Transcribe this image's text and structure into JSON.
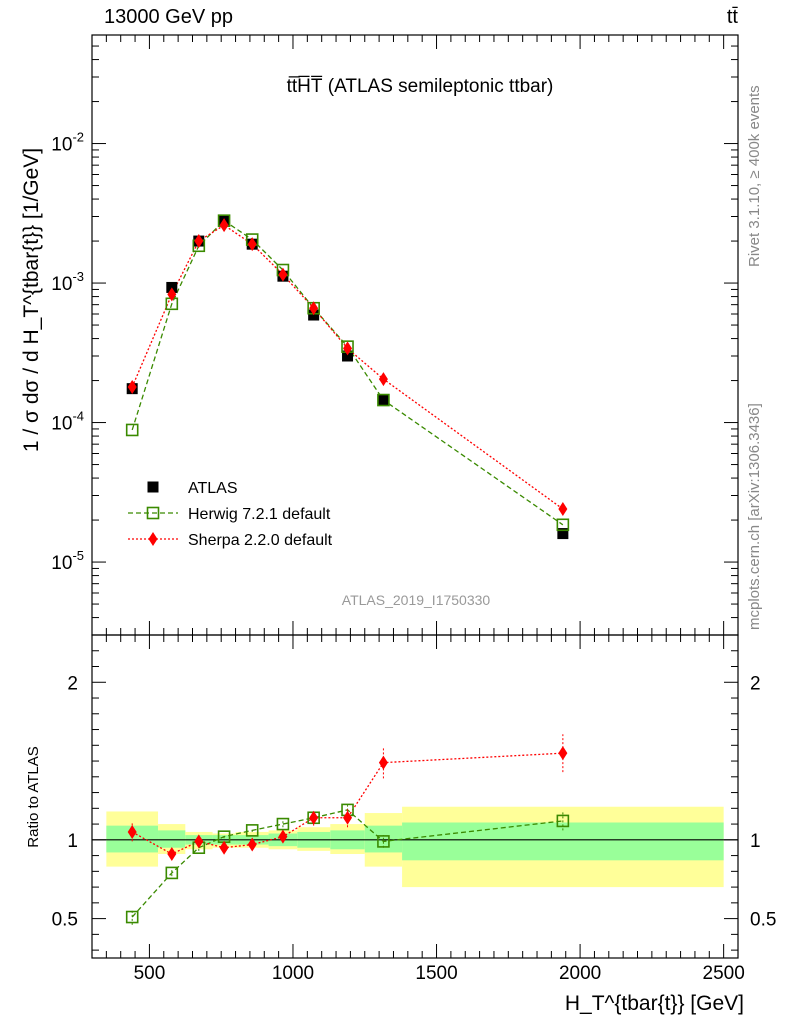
{
  "header": {
    "beam_label": "13000 GeV pp",
    "process_label": "tt̄",
    "side_label_rivet": "Rivet 3.1.10, ≥ 400k events",
    "side_label_mcplots": "mcplots.cern.ch [arXiv:1306.3436]"
  },
  "colors": {
    "atlas": "#000000",
    "herwig": "#3a8a00",
    "sherpa": "#ff0000",
    "band_inner": "#99ff99",
    "band_outer": "#ffff99"
  },
  "chart_data": [
    {
      "type": "scatter",
      "title": "tt̅H̅T̅ (ATLAS semileptonic ttbar)",
      "analysis_label": "ATLAS_2019_I1750330",
      "ylabel": "1 / σ dσ / d H_T^{tbar{t}} [1/GeV]",
      "yscale": "log",
      "ylim": [
        3e-06,
        0.06
      ],
      "xlim": [
        300,
        2550
      ],
      "y_tick_labels": [
        "10^-5",
        "10^-4",
        "10^-3",
        "10^-2"
      ],
      "legend_position": "bottom-left",
      "bins": [
        {
          "lo": 350,
          "hi": 530
        },
        {
          "lo": 530,
          "hi": 625
        },
        {
          "lo": 625,
          "hi": 720
        },
        {
          "lo": 720,
          "hi": 800
        },
        {
          "lo": 800,
          "hi": 915
        },
        {
          "lo": 915,
          "hi": 1015
        },
        {
          "lo": 1015,
          "hi": 1130
        },
        {
          "lo": 1130,
          "hi": 1250
        },
        {
          "lo": 1250,
          "hi": 1380
        },
        {
          "lo": 1380,
          "hi": 2500
        }
      ],
      "series": [
        {
          "name": "ATLAS",
          "x": [
            440,
            578,
            672,
            760,
            858,
            965,
            1072,
            1190,
            1315,
            1940
          ],
          "y": [
            0.000175,
            0.00093,
            0.002,
            0.0028,
            0.0019,
            0.00112,
            0.00059,
            0.0003,
            0.000145,
            1.6e-05
          ]
        },
        {
          "name": "Herwig 7.2.1 default",
          "x": [
            440,
            578,
            672,
            760,
            858,
            965,
            1072,
            1190,
            1315,
            1940
          ],
          "y": [
            8.85e-05,
            0.00071,
            0.00185,
            0.0028,
            0.00205,
            0.00124,
            0.00066,
            0.00035,
            0.000145,
            1.85e-05
          ]
        },
        {
          "name": "Sherpa 2.2.0 default",
          "x": [
            440,
            578,
            672,
            760,
            858,
            965,
            1072,
            1190,
            1315,
            1940
          ],
          "y": [
            0.00018,
            0.00083,
            0.002,
            0.0026,
            0.0019,
            0.00115,
            0.00066,
            0.00034,
            0.000205,
            2.4e-05
          ]
        }
      ]
    },
    {
      "type": "scatter",
      "ylabel": "Ratio to ATLAS",
      "xlabel": "H_T^{tbar{t}} [GeV]",
      "xlim": [
        300,
        2550
      ],
      "ylim": [
        0.25,
        2.3
      ],
      "x_ticks": [
        500,
        1000,
        1500,
        2000,
        2500
      ],
      "y_ticks": [
        0.5,
        1,
        2
      ],
      "y_tick_labels": [
        "0.5",
        "1",
        "2"
      ],
      "bands": [
        {
          "lo": 350,
          "hi": 530,
          "inner": [
            0.92,
            1.09
          ],
          "outer": [
            0.83,
            1.18
          ]
        },
        {
          "lo": 530,
          "hi": 625,
          "inner": [
            0.95,
            1.06
          ],
          "outer": [
            0.91,
            1.1
          ]
        },
        {
          "lo": 625,
          "hi": 720,
          "inner": [
            0.97,
            1.03
          ],
          "outer": [
            0.94,
            1.05
          ]
        },
        {
          "lo": 720,
          "hi": 800,
          "inner": [
            0.97,
            1.03
          ],
          "outer": [
            0.95,
            1.04
          ]
        },
        {
          "lo": 800,
          "hi": 915,
          "inner": [
            0.97,
            1.03
          ],
          "outer": [
            0.95,
            1.05
          ]
        },
        {
          "lo": 915,
          "hi": 1015,
          "inner": [
            0.96,
            1.04
          ],
          "outer": [
            0.94,
            1.06
          ]
        },
        {
          "lo": 1015,
          "hi": 1130,
          "inner": [
            0.95,
            1.05
          ],
          "outer": [
            0.93,
            1.08
          ]
        },
        {
          "lo": 1130,
          "hi": 1250,
          "inner": [
            0.94,
            1.06
          ],
          "outer": [
            0.91,
            1.1
          ]
        },
        {
          "lo": 1250,
          "hi": 1380,
          "inner": [
            0.92,
            1.09
          ],
          "outer": [
            0.83,
            1.17
          ]
        },
        {
          "lo": 1380,
          "hi": 2500,
          "inner": [
            0.87,
            1.11
          ],
          "outer": [
            0.7,
            1.21
          ]
        }
      ],
      "series": [
        {
          "name": "Herwig 7.2.1 default",
          "x": [
            440,
            578,
            672,
            760,
            858,
            965,
            1072,
            1190,
            1315,
            1940
          ],
          "y": [
            0.51,
            0.79,
            0.95,
            1.02,
            1.06,
            1.1,
            1.14,
            1.19,
            0.99,
            1.12
          ],
          "err": [
            0.05,
            0.02,
            0.02,
            0.01,
            0.01,
            0.02,
            0.02,
            0.03,
            0.04,
            0.06
          ]
        },
        {
          "name": "Sherpa 2.2.0 default",
          "x": [
            440,
            578,
            672,
            760,
            858,
            965,
            1072,
            1190,
            1315,
            1940
          ],
          "y": [
            1.05,
            0.91,
            0.99,
            0.95,
            0.97,
            1.02,
            1.14,
            1.14,
            1.49,
            1.55
          ],
          "err": [
            0.06,
            0.03,
            0.02,
            0.02,
            0.02,
            0.03,
            0.05,
            0.06,
            0.1,
            0.12
          ]
        }
      ]
    }
  ]
}
